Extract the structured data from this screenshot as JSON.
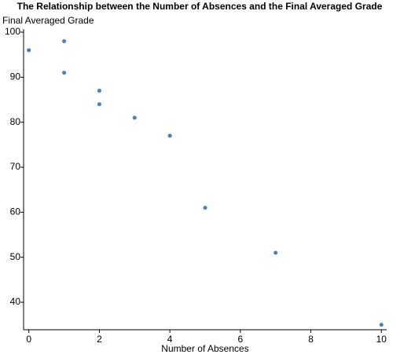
{
  "chart_data": {
    "type": "scatter",
    "title": "The Relationship between the Number of Absences and the Final Averaged Grade",
    "x_label": "Number of Absences",
    "y_label": "Final Averaged Grade",
    "x": [
      0,
      1,
      1,
      2,
      2,
      3,
      4,
      5,
      7,
      10
    ],
    "values": [
      96,
      98,
      91,
      87,
      84,
      81,
      77,
      61,
      51,
      35
    ],
    "color": "#4a7ebb",
    "xlim": [
      -0.15,
      10.15
    ],
    "xticks": [
      0,
      2,
      4,
      6,
      8,
      10
    ],
    "ylim": [
      33.9,
      100.7
    ],
    "yticks": [
      40,
      50,
      60,
      70,
      80,
      90,
      100
    ]
  }
}
